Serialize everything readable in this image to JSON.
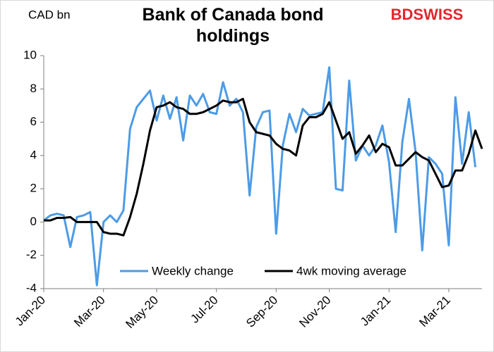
{
  "chart_data": {
    "type": "line",
    "title": "Bank of Canada bond holdings",
    "y_axis_label": "CAD bn",
    "logo": "BDSWISS",
    "categories": [
      "Jan-20",
      null,
      null,
      null,
      null,
      null,
      null,
      null,
      null,
      "Mar-20",
      null,
      null,
      null,
      null,
      null,
      null,
      null,
      "May-20",
      null,
      null,
      null,
      null,
      null,
      null,
      null,
      null,
      "Jul-20",
      null,
      null,
      null,
      null,
      null,
      null,
      null,
      null,
      "Sep-20",
      null,
      null,
      null,
      null,
      null,
      null,
      null,
      "Nov-20",
      null,
      null,
      null,
      null,
      null,
      null,
      null,
      null,
      "Jan-21",
      null,
      null,
      null,
      null,
      null,
      null,
      null,
      null,
      "Mar-21",
      null,
      null,
      null,
      null,
      null
    ],
    "series": [
      {
        "name": "Weekly change",
        "color": "#4d9be6",
        "values": [
          0.1,
          0.4,
          0.5,
          0.4,
          -1.5,
          0.3,
          0.4,
          0.6,
          -3.8,
          0.0,
          0.4,
          0.0,
          0.7,
          5.6,
          6.9,
          7.4,
          7.9,
          6.1,
          7.6,
          6.2,
          7.5,
          4.9,
          7.6,
          7.0,
          7.7,
          6.6,
          6.5,
          8.4,
          7.0,
          7.4,
          6.6,
          1.6,
          5.7,
          6.6,
          6.7,
          -0.7,
          4.6,
          6.5,
          5.4,
          6.8,
          6.4,
          6.5,
          6.6,
          9.3,
          2.0,
          1.9,
          8.5,
          3.7,
          4.6,
          4.0,
          4.6,
          5.8,
          3.6,
          -0.6,
          4.8,
          7.4,
          4.2,
          -1.7,
          3.9,
          3.5,
          2.9,
          -1.4,
          7.5,
          3.5,
          6.6,
          3.3,
          null
        ]
      },
      {
        "name": "4wk moving average",
        "color": "#000000",
        "values": [
          0.1,
          0.1,
          0.25,
          0.25,
          0.3,
          0.0,
          0.0,
          0.0,
          0.0,
          -0.6,
          -0.7,
          -0.7,
          -0.8,
          0.3,
          1.7,
          3.5,
          5.5,
          6.9,
          7.0,
          7.2,
          6.9,
          6.8,
          6.5,
          6.5,
          6.6,
          6.8,
          7.0,
          7.3,
          7.2,
          7.2,
          7.4,
          6.0,
          5.4,
          5.3,
          5.2,
          4.7,
          4.4,
          4.3,
          4.0,
          5.8,
          6.3,
          6.3,
          6.5,
          7.2,
          6.1,
          5.0,
          5.4,
          4.1,
          4.6,
          5.2,
          4.2,
          4.7,
          4.5,
          3.4,
          3.4,
          3.8,
          4.2,
          3.9,
          3.7,
          2.9,
          2.1,
          2.2,
          3.1,
          3.1,
          4.1,
          5.5,
          4.4
        ]
      }
    ],
    "ylim": [
      -4,
      10
    ],
    "yticks": [
      -4,
      -2,
      0,
      2,
      4,
      6,
      8,
      10
    ],
    "grid": false
  }
}
